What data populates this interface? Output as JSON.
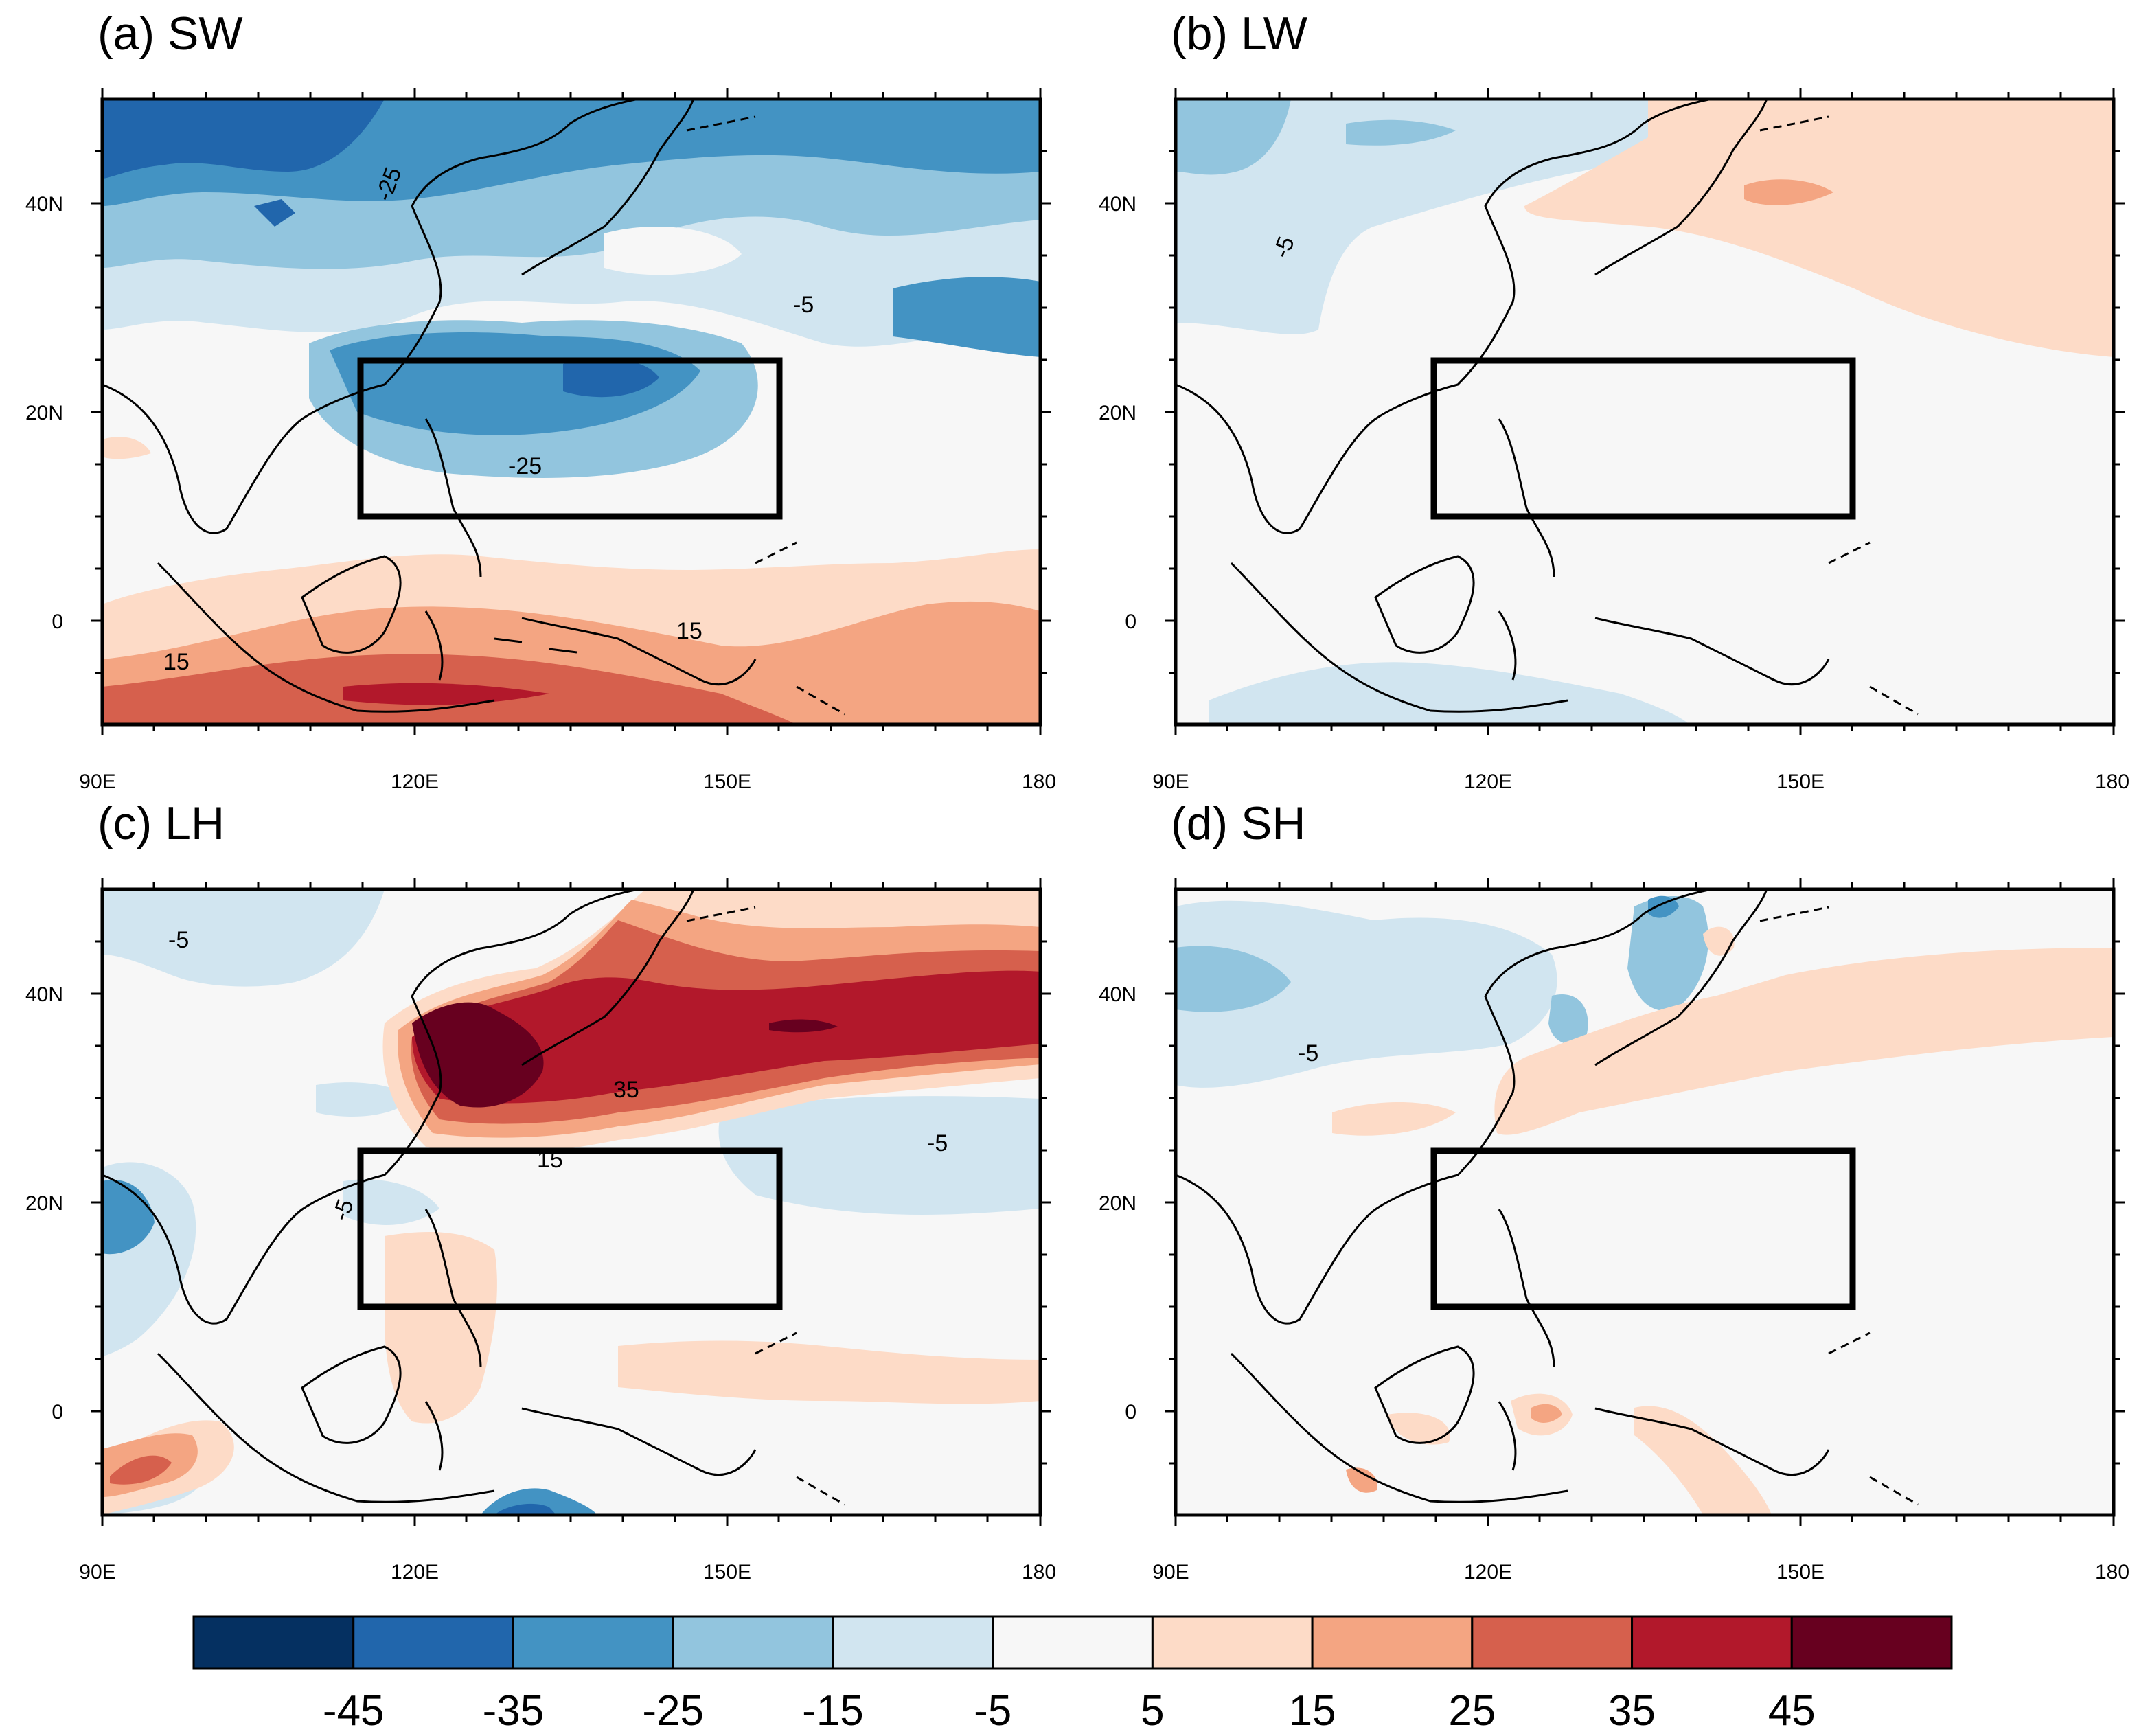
{
  "panels": [
    {
      "id": "a",
      "title": "(a) SW",
      "field": "SW",
      "contour_labels": [
        "-25",
        "-5",
        "-25",
        "15",
        "15"
      ],
      "background": "#f6f6f6"
    },
    {
      "id": "b",
      "title": "(b) LW",
      "field": "LW",
      "contour_labels": [
        "-5"
      ],
      "background": "#f6f6f6"
    },
    {
      "id": "c",
      "title": "(c) LH",
      "field": "LH",
      "contour_labels": [
        "-5",
        "35",
        "15",
        "-5",
        "-5"
      ],
      "background": "#f6f6f6"
    },
    {
      "id": "d",
      "title": "(d) SH",
      "field": "SH",
      "contour_labels": [
        "-5"
      ],
      "background": "#f6f6f6"
    }
  ],
  "axes": {
    "lon_ticks": [
      "90E",
      "120E",
      "150E",
      "180"
    ],
    "lat_ticks": [
      "40N",
      "20N",
      "0"
    ],
    "lon_range": [
      90,
      180
    ],
    "lat_range": [
      -10,
      50
    ]
  },
  "box_region": {
    "lon_range": [
      115,
      155
    ],
    "lat_range": [
      10,
      25
    ]
  },
  "colorbar": {
    "labels": [
      "-45",
      "-35",
      "-25",
      "-15",
      "-5",
      "5",
      "15",
      "25",
      "35",
      "45"
    ],
    "colors": [
      "#053061",
      "#2166ac",
      "#4393c3",
      "#92c5de",
      "#d1e5f0",
      "#f7f7f7",
      "#fddbc7",
      "#f4a582",
      "#d6604d",
      "#b2182b",
      "#67001f"
    ]
  }
}
